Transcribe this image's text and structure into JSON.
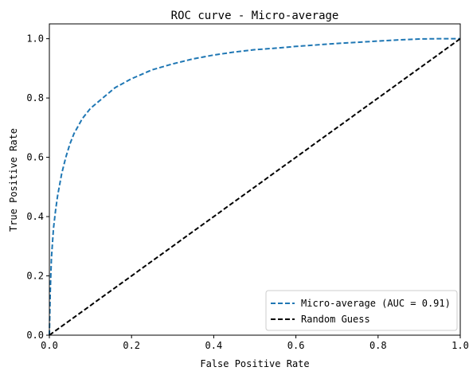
{
  "chart_data": {
    "type": "line",
    "title": "ROC curve - Micro-average",
    "xlabel": "False Positive Rate",
    "ylabel": "True Positive Rate",
    "xlim": [
      0.0,
      1.0
    ],
    "ylim": [
      0.0,
      1.05
    ],
    "x_ticks": [
      "0.0",
      "0.2",
      "0.4",
      "0.6",
      "0.8",
      "1.0"
    ],
    "y_ticks": [
      "0.0",
      "0.2",
      "0.4",
      "0.6",
      "0.8",
      "1.0"
    ],
    "grid": false,
    "legend_position": "lower-right",
    "series": [
      {
        "name": "Micro-average (AUC = 0.91)",
        "color": "#1f77b4",
        "style": "dashed",
        "x": [
          0.0,
          0.002,
          0.005,
          0.01,
          0.015,
          0.02,
          0.03,
          0.04,
          0.05,
          0.06,
          0.08,
          0.1,
          0.13,
          0.16,
          0.2,
          0.25,
          0.3,
          0.35,
          0.4,
          0.45,
          0.5,
          0.55,
          0.6,
          0.65,
          0.7,
          0.75,
          0.8,
          0.85,
          0.9,
          0.95,
          1.0
        ],
        "y": [
          0.0,
          0.14,
          0.26,
          0.36,
          0.42,
          0.47,
          0.545,
          0.6,
          0.645,
          0.68,
          0.73,
          0.765,
          0.8,
          0.835,
          0.865,
          0.895,
          0.915,
          0.932,
          0.945,
          0.955,
          0.963,
          0.968,
          0.974,
          0.979,
          0.984,
          0.988,
          0.992,
          0.996,
          0.999,
          1.0,
          1.0
        ]
      },
      {
        "name": "Random Guess",
        "color": "#000000",
        "style": "dashed",
        "x": [
          0.0,
          1.0
        ],
        "y": [
          0.0,
          1.0
        ]
      }
    ]
  }
}
